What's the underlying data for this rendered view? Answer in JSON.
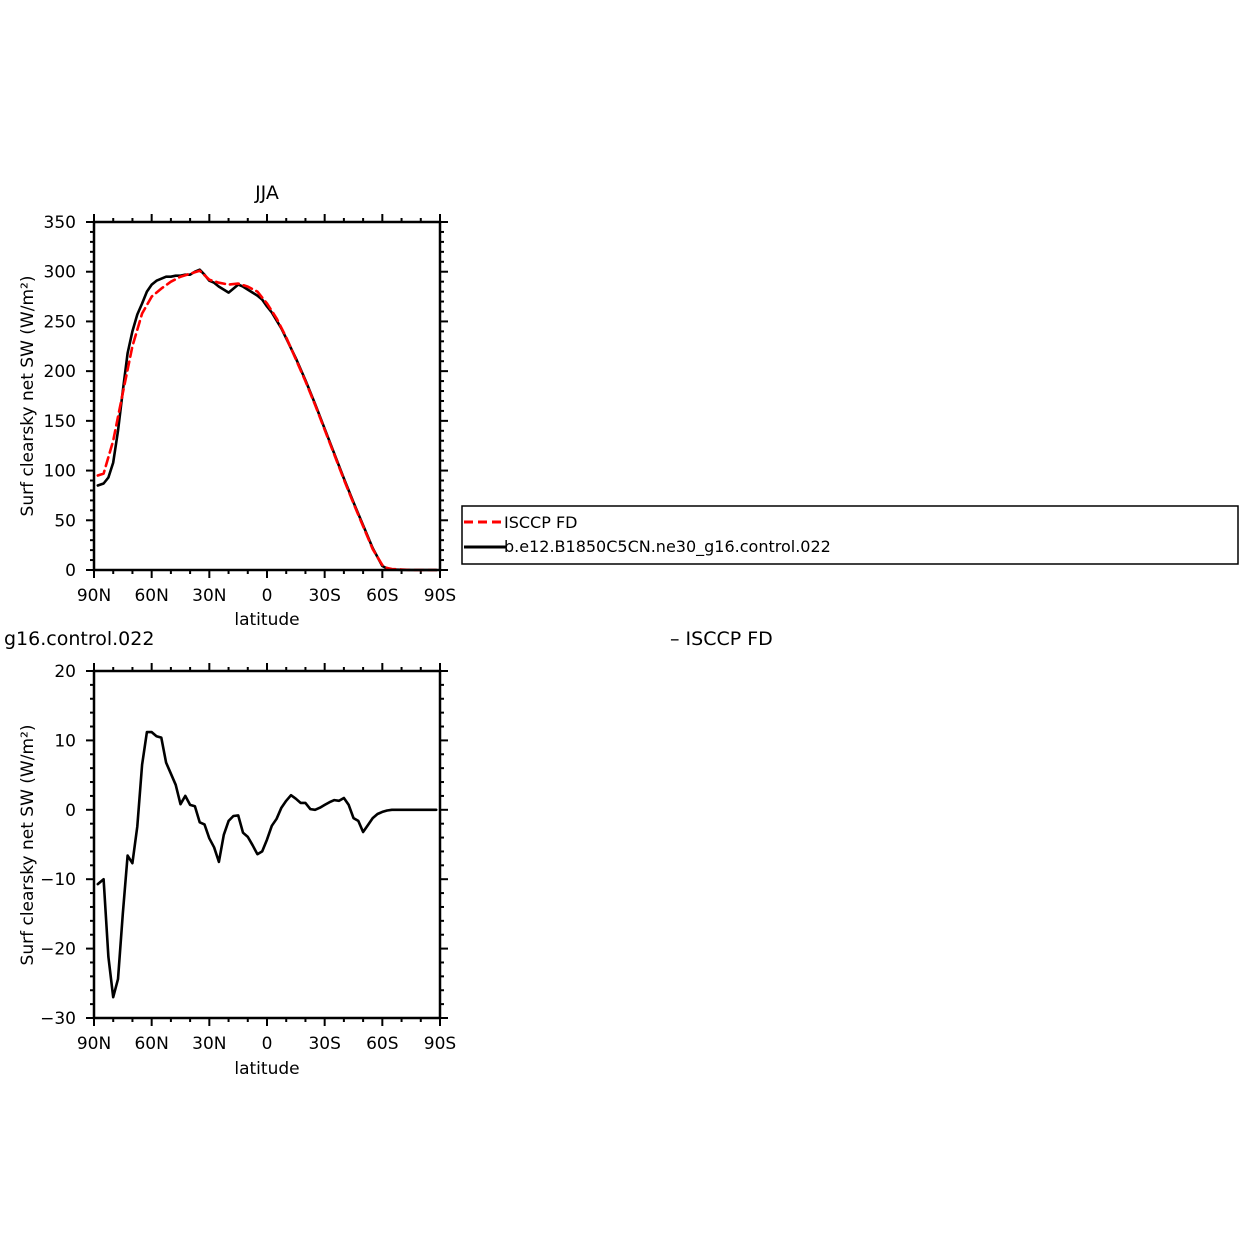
{
  "colors": {
    "obs": "#ff0000",
    "model": "#000000"
  },
  "chart_data": [
    {
      "type": "line",
      "title": "JJA",
      "xlabel": "latitude",
      "ylabel": "Surf clearsky net SW (W/m²)",
      "xlim": [
        90,
        -90
      ],
      "ylim": [
        0,
        350
      ],
      "xticks": [
        90,
        60,
        30,
        0,
        -30,
        -60,
        -90
      ],
      "xtick_labels": [
        "90N",
        "60N",
        "30N",
        "0",
        "30S",
        "60S",
        "90S"
      ],
      "yticks": [
        0,
        50,
        100,
        150,
        200,
        250,
        300,
        350
      ],
      "ytick_labels": [
        "0",
        "50",
        "100",
        "150",
        "200",
        "250",
        "300",
        "350"
      ],
      "legend": {
        "position": "right",
        "entries": [
          "ISCCP FD",
          "b.e12.B1850C5CN.ne30_g16.control.022"
        ]
      },
      "series": [
        {
          "name": "ISCCP FD",
          "style": "dashed",
          "color": "#ff0000",
          "x": [
            88,
            85,
            80,
            75,
            70,
            65,
            60,
            55,
            50,
            45,
            40,
            35,
            30,
            25,
            20,
            15,
            10,
            5,
            0,
            -5,
            -10,
            -15,
            -20,
            -25,
            -30,
            -35,
            -40,
            -45,
            -50,
            -55,
            -60,
            -62.5,
            -65,
            -70,
            -75,
            -80,
            -85,
            -88
          ],
          "y": [
            95,
            97,
            130,
            178,
            225,
            258,
            275,
            283,
            290,
            295,
            298,
            301,
            292,
            289,
            287,
            288,
            285,
            280,
            268,
            253,
            234,
            212,
            190,
            166,
            141,
            116,
            91,
            67,
            44,
            21,
            5,
            2,
            1,
            0.5,
            0,
            0,
            0,
            0
          ]
        },
        {
          "name": "b.e12.B1850C5CN.ne30_g16.control.022",
          "style": "solid",
          "color": "#000000",
          "x": [
            88,
            85,
            82.5,
            80,
            77.5,
            75,
            72.5,
            70,
            67.5,
            65,
            62.5,
            60,
            57.5,
            55,
            52.5,
            50,
            47.5,
            45,
            42.5,
            40,
            37.5,
            35,
            32.5,
            30,
            27.5,
            25,
            22.5,
            20,
            17.5,
            15,
            12.5,
            10,
            7.5,
            5,
            2.5,
            0,
            -2.5,
            -5,
            -7.5,
            -10,
            -15,
            -20,
            -25,
            -30,
            -35,
            -40,
            -45,
            -50,
            -55,
            -60,
            -62.5,
            -65,
            -67.5,
            -70,
            -75,
            -80,
            -85,
            -88
          ],
          "y": [
            85,
            87,
            93,
            108,
            140,
            180,
            218,
            240,
            257,
            268,
            280,
            287,
            291,
            293,
            295,
            295,
            296,
            296,
            297,
            297,
            300,
            302,
            297,
            291,
            289,
            285,
            282,
            279,
            283,
            287,
            285,
            282,
            279,
            276,
            272,
            265,
            259,
            251,
            243,
            233,
            213,
            191,
            167,
            142,
            117,
            92,
            68,
            45,
            22,
            4,
            1.5,
            0.5,
            0.3,
            0.2,
            0,
            0,
            0,
            0
          ]
        }
      ]
    },
    {
      "type": "line",
      "title": "",
      "partial_title": "g16.control.022",
      "right_title": "– ISCCP FD",
      "xlabel": "latitude",
      "ylabel": "Surf clearsky net SW (W/m²)",
      "xlim": [
        90,
        -90
      ],
      "ylim": [
        -30,
        20
      ],
      "xticks": [
        90,
        60,
        30,
        0,
        -30,
        -60,
        -90
      ],
      "xtick_labels": [
        "90N",
        "60N",
        "30N",
        "0",
        "30S",
        "60S",
        "90S"
      ],
      "yticks": [
        -30,
        -20,
        -10,
        0,
        10,
        20
      ],
      "ytick_labels": [
        "−30",
        "−20",
        "−10",
        "0",
        "10",
        "20"
      ],
      "series": [
        {
          "name": "",
          "style": "solid",
          "color": "#000000",
          "x": [
            88,
            85,
            82.5,
            80,
            77.5,
            75,
            72.5,
            70,
            67.5,
            65,
            62.5,
            60,
            57.5,
            55,
            52.5,
            50,
            47.5,
            45,
            42.5,
            40,
            37.5,
            35,
            32.5,
            30,
            27.5,
            25,
            22.5,
            20,
            17.5,
            15,
            12.5,
            10,
            7.5,
            5,
            2.5,
            0,
            -2.5,
            -5,
            -7.5,
            -10,
            -12.5,
            -15,
            -17.5,
            -20,
            -22.5,
            -25,
            -27.5,
            -30,
            -32.5,
            -35,
            -37.5,
            -40,
            -42.5,
            -45,
            -47.5,
            -50,
            -52.5,
            -55,
            -57.5,
            -60,
            -62.5,
            -65,
            -67.5,
            -70,
            -72.5,
            -75,
            -77.5,
            -80,
            -82.5,
            -85,
            -88
          ],
          "y": [
            -10.7,
            -10,
            -21.2,
            -27,
            -24.4,
            -15,
            -6.6,
            -7.7,
            -2.4,
            6.5,
            11.2,
            11.2,
            10.6,
            10.4,
            6.8,
            5.2,
            3.6,
            0.8,
            2.0,
            0.7,
            0.5,
            -1.8,
            -2.1,
            -4.1,
            -5.4,
            -7.5,
            -3.6,
            -1.6,
            -0.9,
            -0.8,
            -3.3,
            -3.9,
            -5.1,
            -6.4,
            -6.0,
            -4.3,
            -2.3,
            -1.3,
            0.3,
            1.3,
            2.1,
            1.6,
            1.0,
            1.0,
            0.1,
            0.0,
            0.3,
            0.7,
            1.1,
            1.4,
            1.3,
            1.7,
            0.7,
            -1.2,
            -1.6,
            -3.2,
            -2.2,
            -1.2,
            -0.6,
            -0.3,
            -0.1,
            0,
            0,
            0,
            0,
            0,
            0,
            0,
            0,
            0,
            0
          ]
        }
      ]
    }
  ]
}
